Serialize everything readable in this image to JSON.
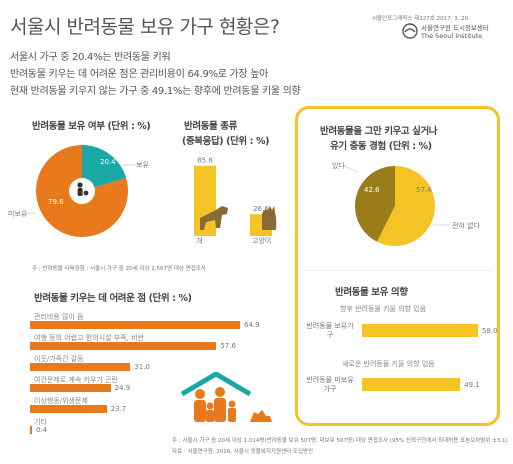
{
  "header": {
    "title": "서울시 반려동물 보유 가구 현황은?",
    "source_top": "서울인포그래픽스 제227호 2017. 3. 20.",
    "org_kr": "서울연구원 도시정보센터",
    "org_en": "The Seoul Institute"
  },
  "summary": [
    "서울시 가구 중 20.4%는 반려동물 키워",
    "반려동물 키우는 데 어려운 점은 관리비용이 64.9%로 가장 높아",
    "현재 반려동물 키우지 않는 가구 중 49.1%는 향후에 반려동물 키울 의향"
  ],
  "colors": {
    "orange": "#e8791d",
    "teal": "#1aa8a4",
    "yellow": "#f4c325",
    "olive": "#9a7d1a",
    "grey": "#7f7f7f"
  },
  "chart_data": [
    {
      "type": "pie",
      "title": "반려동물 보유 여부 (단위 : %)",
      "slices": [
        {
          "name": "보유",
          "value": 20.4,
          "color": "#1aa8a4"
        },
        {
          "name": "미보유",
          "value": 79.6,
          "color": "#e8791d"
        }
      ]
    },
    {
      "type": "bar",
      "title": "반려동물 종류",
      "subtitle": "(중복응답) (단위 : %)",
      "categories": [
        "개",
        "고양이"
      ],
      "values": [
        85.8,
        26.6
      ]
    },
    {
      "type": "pie",
      "title": "반려동물을 그만 키우고 싶거나",
      "subtitle": "유기 충동 경험 (단위 : %)",
      "slices": [
        {
          "name": "있다",
          "value": 42.6,
          "color": "#9a7d1a"
        },
        {
          "name": "전혀 없다",
          "value": 57.4,
          "color": "#f4c325"
        }
      ]
    },
    {
      "type": "bar",
      "title": "반려동물 키우는 데 어려운 점 (단위 : %)",
      "categories": [
        "관리비용 많이 듬",
        "여행 등의 어렵고 편의시설 부족, 비싼",
        "이웃/가족간 갈등",
        "여건문제로 계속 키우기 곤란",
        "이상행동/위생문제",
        "기타"
      ],
      "values": [
        64.9,
        57.6,
        31.0,
        24.9,
        23.7,
        0.4
      ],
      "value_labels": [
        "64.9",
        "57.6",
        "31.0",
        "24.9",
        "23.7",
        "0.4"
      ]
    },
    {
      "type": "bar",
      "title": "반려동물 보유 의향",
      "groups": [
        {
          "category": "반려동물 보유가구",
          "desc": "향후 반려동물 키울 의향 있음",
          "value": 58.0,
          "label": "58.0"
        },
        {
          "category": "반려동물 미보유 가구",
          "desc": "새로운 반려동물 키울 의향 있음",
          "value": 49.1,
          "label": "49.1"
        }
      ]
    }
  ],
  "notes": {
    "pie_note": "주 : 반려동물 사육경험 : 서울시 가구 중 20세 이상 2,567명 대상 면접조사",
    "bottom_note1": "주 : 서울시 가구 중 20세 이상 1,014명(반려동물 보유 507명, 미보유 507명) 대상 면접조사 (95% 신뢰구간에서 최대허용 표본오차범위 ±3.1)",
    "bottom_note2": "자료 : 서울연구원, 2016, 서울시 동물복지지원센터 도입방안"
  }
}
